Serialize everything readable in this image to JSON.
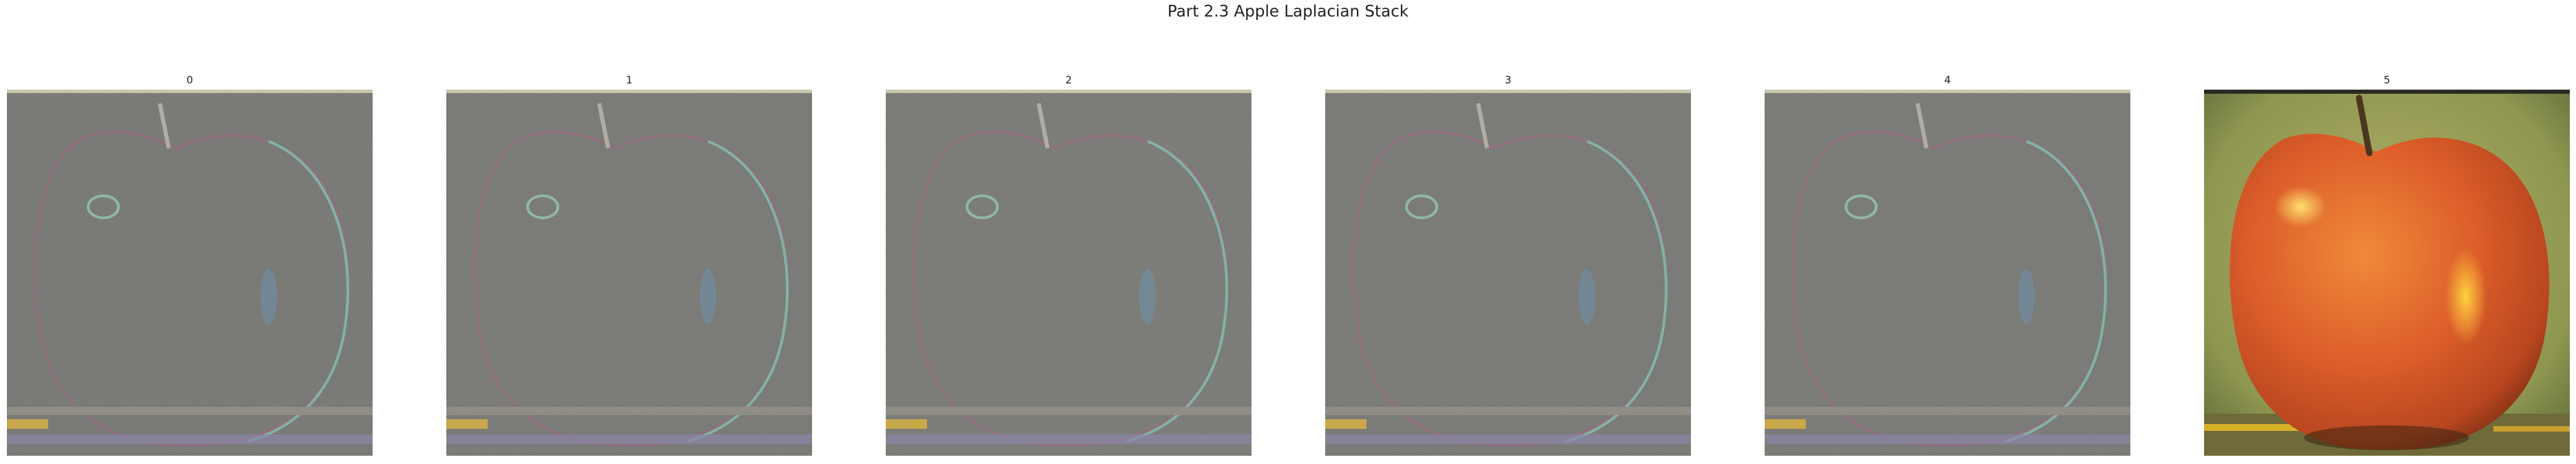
{
  "figure": {
    "title": "Part 2.3 Apple Laplacian Stack"
  },
  "panels": [
    {
      "label": "0",
      "kind": "laplacian"
    },
    {
      "label": "1",
      "kind": "laplacian"
    },
    {
      "label": "2",
      "kind": "laplacian"
    },
    {
      "label": "3",
      "kind": "laplacian"
    },
    {
      "label": "4",
      "kind": "laplacian"
    },
    {
      "label": "5",
      "kind": "residual-color"
    }
  ],
  "colors": {
    "laplacian_bg": "#7b7b78",
    "apple_red": "#d5582a",
    "apple_orange": "#e07a30",
    "residual_bg": "#9aa05a"
  }
}
